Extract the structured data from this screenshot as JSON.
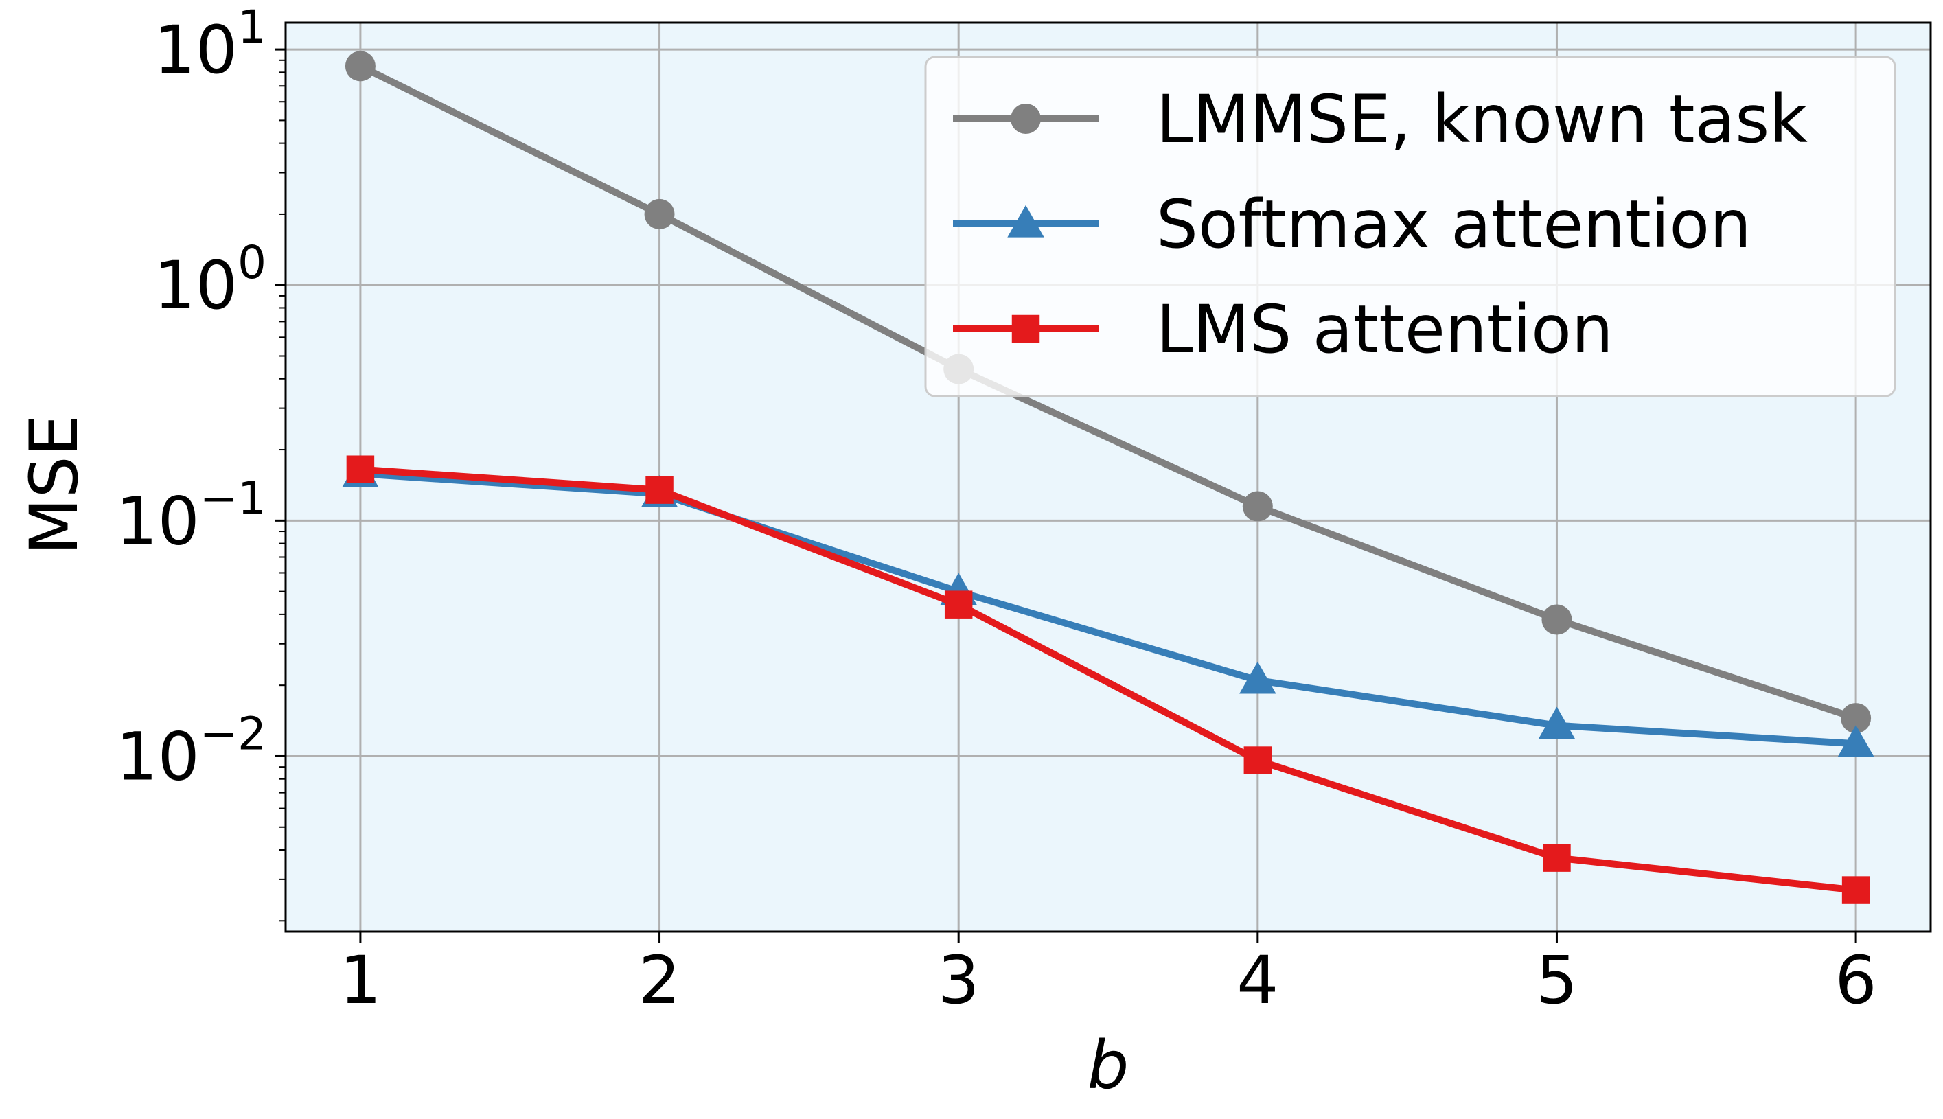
{
  "chart_data": {
    "type": "line",
    "title": "",
    "xlabel": "b",
    "ylabel": "MSE",
    "x": [
      1,
      2,
      3,
      4,
      5,
      6
    ],
    "xticks": [
      "1",
      "2",
      "3",
      "4",
      "5",
      "6"
    ],
    "xlim": [
      0.75,
      6.25
    ],
    "yscale": "log",
    "ylim": [
      0.0018,
      13
    ],
    "yticks": [
      {
        "value": 10,
        "base": "10",
        "exp": "1"
      },
      {
        "value": 1,
        "base": "10",
        "exp": "0"
      },
      {
        "value": 0.1,
        "base": "10",
        "exp": "−1"
      },
      {
        "value": 0.01,
        "base": "10",
        "exp": "−2"
      }
    ],
    "grid": true,
    "legend_position": "top-right",
    "plot_background": "#ebf6fc",
    "series": [
      {
        "name": "LMMSE, known task",
        "color": "#808080",
        "marker": "circle",
        "values": [
          8.5,
          2.0,
          0.44,
          0.115,
          0.038,
          0.0145
        ]
      },
      {
        "name": "Softmax attention",
        "color": "#377eb8",
        "marker": "triangle",
        "values": [
          0.158,
          0.13,
          0.05,
          0.021,
          0.0135,
          0.0113
        ]
      },
      {
        "name": "LMS attention",
        "color": "#e41a1c",
        "marker": "square",
        "values": [
          0.165,
          0.135,
          0.044,
          0.0096,
          0.0037,
          0.0027
        ]
      }
    ]
  }
}
